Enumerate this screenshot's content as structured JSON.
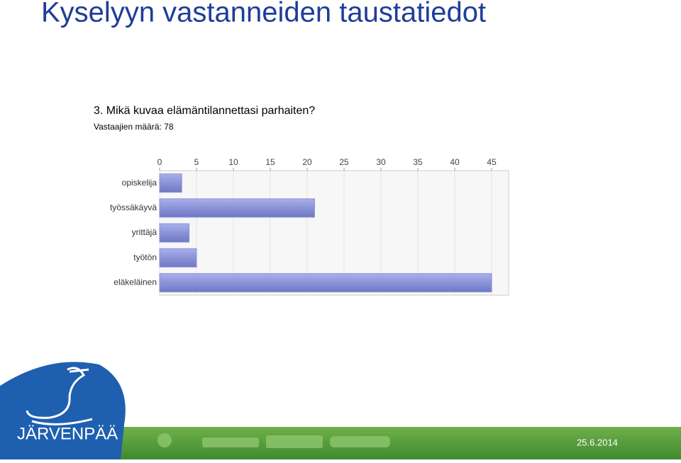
{
  "title": "Kyselyyn vastanneiden taustatiedot",
  "logo_text": "JÄRVENPÄÄ",
  "date": "25.6.2014",
  "chart_data": {
    "type": "bar",
    "orientation": "horizontal",
    "title": "3. Mikä kuvaa elämäntilannettasi parhaiten?",
    "subtitle": "Vastaajien määrä: 78",
    "categories": [
      "opiskelija",
      "työssäkäyvä",
      "yrittäjä",
      "työtön",
      "eläkeläinen"
    ],
    "values": [
      3,
      21,
      4,
      5,
      45
    ],
    "color": "#8a92d8",
    "xlim": [
      0,
      47.3
    ],
    "xticks": [
      0,
      5,
      10,
      15,
      20,
      25,
      30,
      35,
      40,
      45
    ],
    "grid": true
  }
}
